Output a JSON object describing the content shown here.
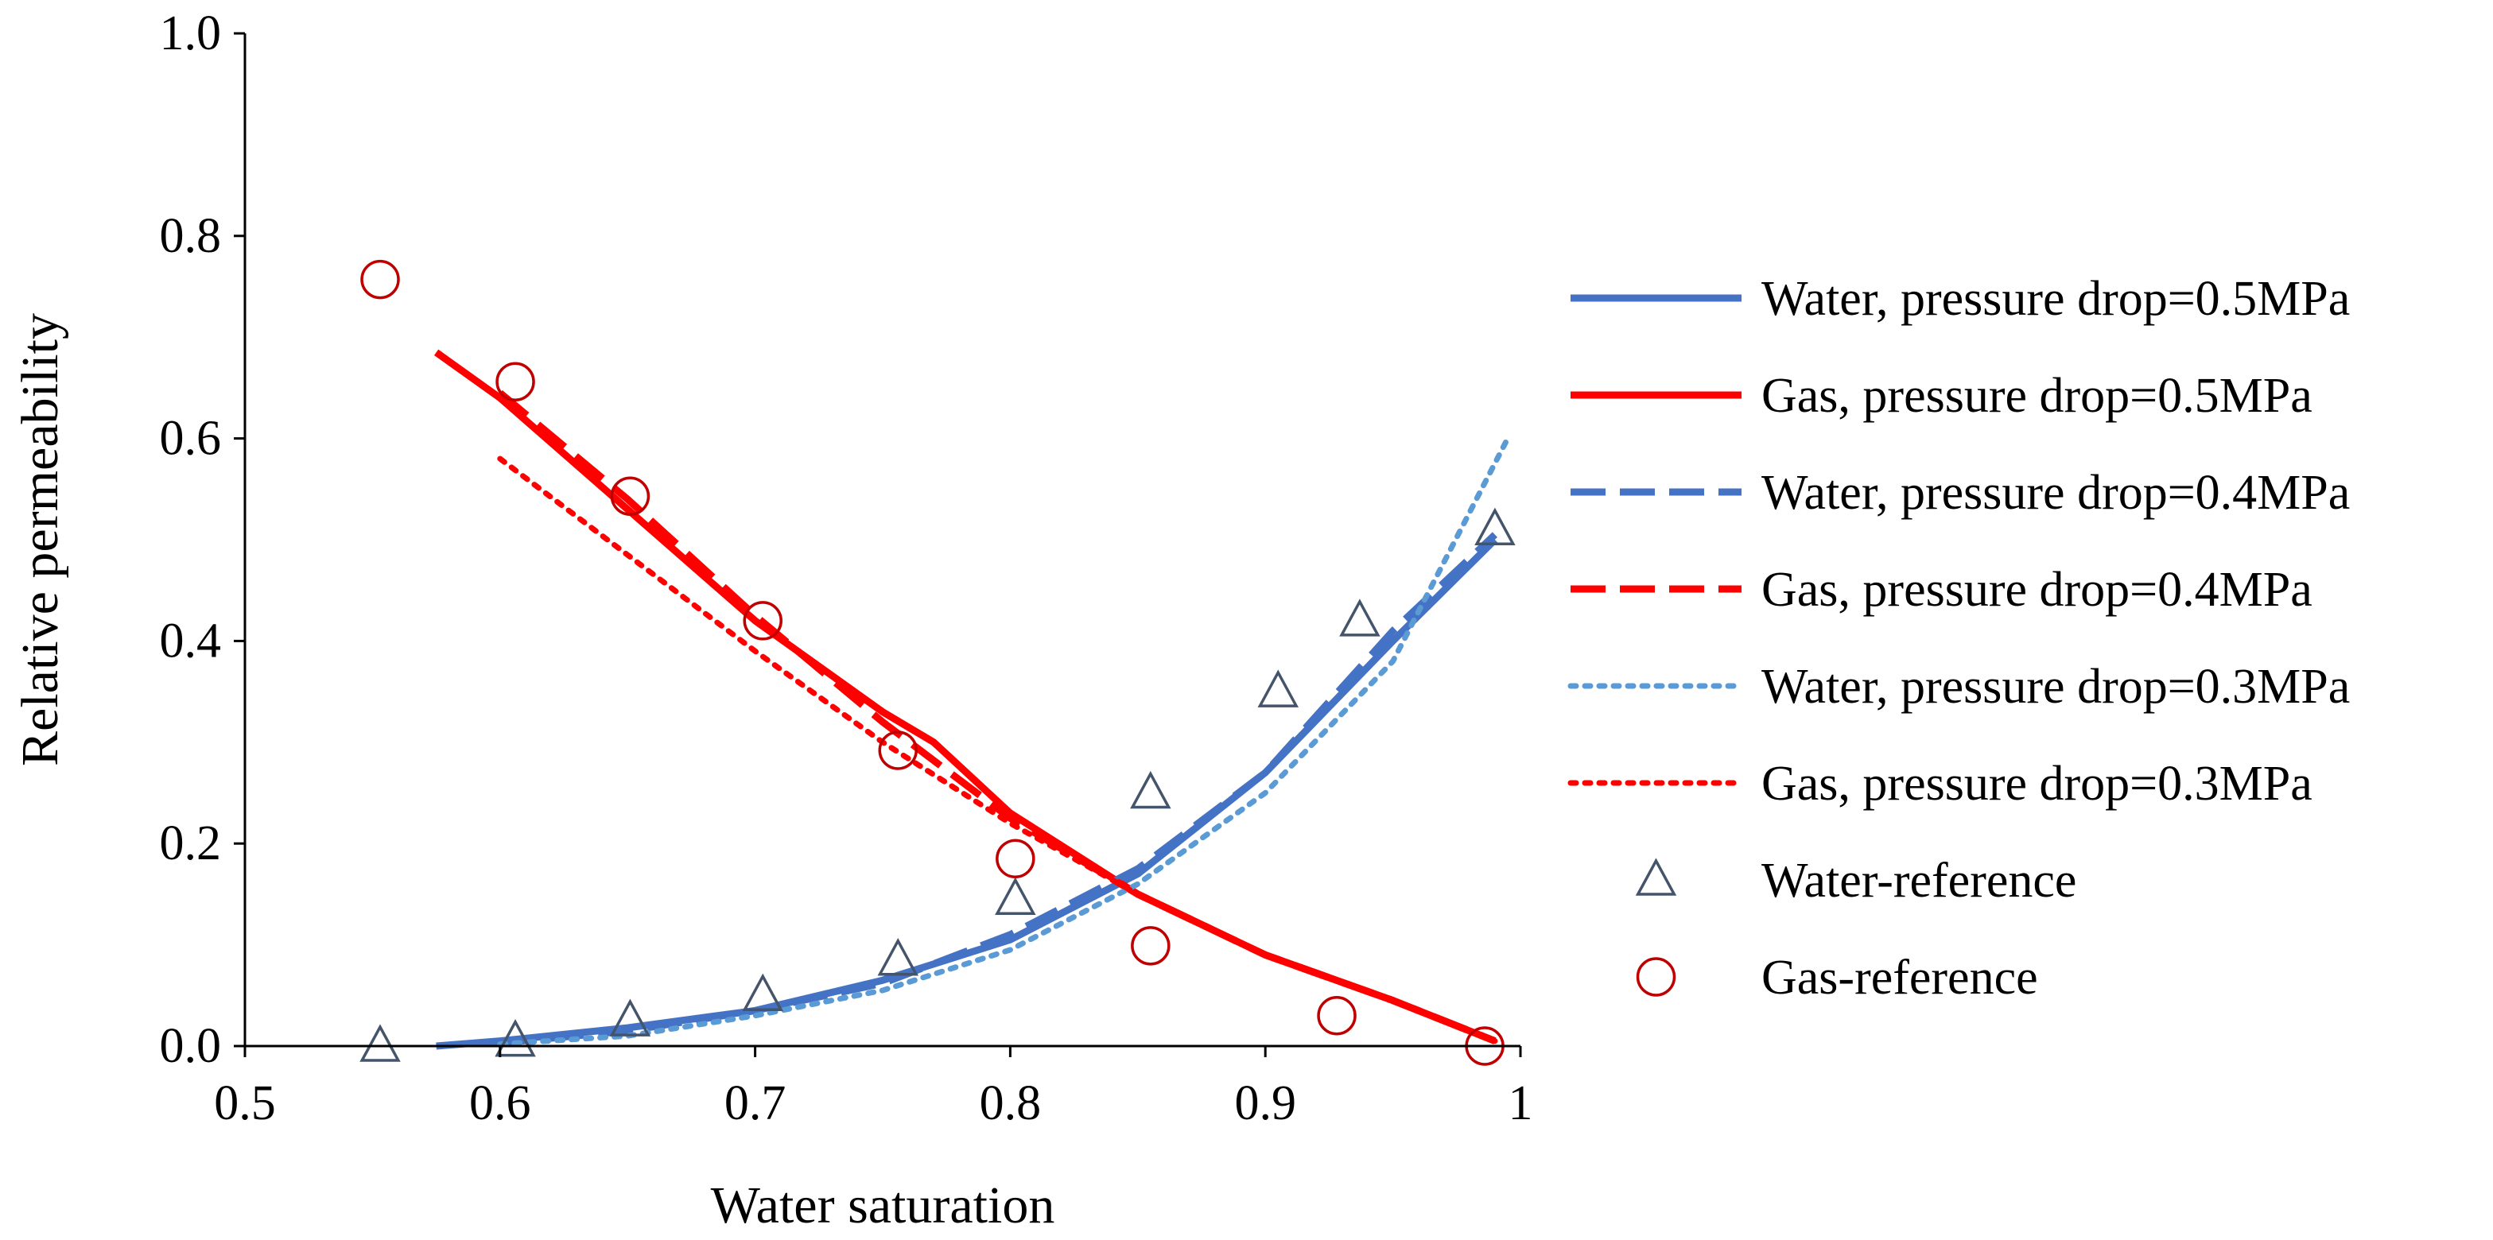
{
  "chart_data": {
    "type": "line",
    "title": "",
    "xlabel": "Water saturation",
    "ylabel": "Relative permeability",
    "xlim": [
      0.5,
      1.0
    ],
    "ylim": [
      0.0,
      1.0
    ],
    "xticks": [
      0.5,
      0.6,
      0.7,
      0.8,
      0.9,
      1.0
    ],
    "xtick_labels": [
      "0.5",
      "0.6",
      "0.7",
      "0.8",
      "0.9",
      "1"
    ],
    "yticks": [
      0.0,
      0.2,
      0.4,
      0.6,
      0.8,
      1.0
    ],
    "ytick_labels": [
      "0.0",
      "0.2",
      "0.4",
      "0.6",
      "0.8",
      "1.0"
    ],
    "grid": false,
    "legend_position": "right",
    "series": [
      {
        "name": "Water, pressure drop=0.5MPa",
        "style": "solid",
        "color": "#4472C4",
        "kind": "line",
        "x": [
          0.575,
          0.6,
          0.65,
          0.7,
          0.75,
          0.8,
          0.85,
          0.9,
          0.95,
          0.99
        ],
        "y": [
          0.0,
          0.005,
          0.018,
          0.035,
          0.065,
          0.105,
          0.17,
          0.27,
          0.4,
          0.5
        ]
      },
      {
        "name": "Gas, pressure drop=0.5MPa",
        "style": "solid",
        "color": "#FF0000",
        "kind": "line",
        "x": [
          0.575,
          0.6,
          0.65,
          0.7,
          0.75,
          0.77,
          0.8,
          0.85,
          0.9,
          0.95,
          0.99
        ],
        "y": [
          0.685,
          0.64,
          0.53,
          0.42,
          0.33,
          0.3,
          0.23,
          0.15,
          0.09,
          0.045,
          0.005
        ]
      },
      {
        "name": "Water, pressure drop=0.4MPa",
        "style": "dashed",
        "color": "#4472C4",
        "kind": "line",
        "x": [
          0.6,
          0.65,
          0.7,
          0.75,
          0.8,
          0.85,
          0.9,
          0.95,
          0.99
        ],
        "y": [
          0.003,
          0.015,
          0.035,
          0.062,
          0.11,
          0.175,
          0.27,
          0.41,
          0.505
        ]
      },
      {
        "name": "Gas, pressure drop=0.4MPa",
        "style": "dashed",
        "color": "#FF0000",
        "kind": "line",
        "x": [
          0.6,
          0.65,
          0.7,
          0.75,
          0.8,
          0.85,
          0.9,
          0.95,
          0.99
        ],
        "y": [
          0.645,
          0.54,
          0.425,
          0.32,
          0.225,
          0.15,
          0.09,
          0.045,
          0.005
        ]
      },
      {
        "name": "Water, pressure drop=0.3MPa",
        "style": "dotted",
        "color": "#5B9BD5",
        "kind": "line",
        "x": [
          0.6,
          0.65,
          0.7,
          0.75,
          0.8,
          0.85,
          0.9,
          0.95,
          0.995
        ],
        "y": [
          0.002,
          0.01,
          0.03,
          0.055,
          0.095,
          0.16,
          0.25,
          0.38,
          0.6
        ]
      },
      {
        "name": "Gas, pressure drop=0.3MPa",
        "style": "dotted",
        "color": "#FF0000",
        "kind": "line",
        "x": [
          0.6,
          0.65,
          0.7,
          0.75,
          0.8,
          0.85,
          0.9,
          0.95,
          0.99
        ],
        "y": [
          0.58,
          0.485,
          0.39,
          0.3,
          0.22,
          0.15,
          0.09,
          0.045,
          0.005
        ]
      },
      {
        "name": "Water-reference",
        "kind": "marker",
        "marker": "triangle",
        "color": "#44546A",
        "x": [
          0.553,
          0.606,
          0.651,
          0.703,
          0.756,
          0.802,
          0.855,
          0.905,
          0.937,
          0.99
        ],
        "y": [
          0.0,
          0.005,
          0.025,
          0.05,
          0.085,
          0.145,
          0.25,
          0.35,
          0.42,
          0.51
        ]
      },
      {
        "name": "Gas-reference",
        "kind": "marker",
        "marker": "circle",
        "color": "#C00000",
        "x": [
          0.553,
          0.606,
          0.651,
          0.703,
          0.756,
          0.802,
          0.855,
          0.928,
          0.986
        ],
        "y": [
          0.757,
          0.656,
          0.543,
          0.42,
          0.292,
          0.185,
          0.099,
          0.03,
          0.0
        ]
      }
    ]
  }
}
